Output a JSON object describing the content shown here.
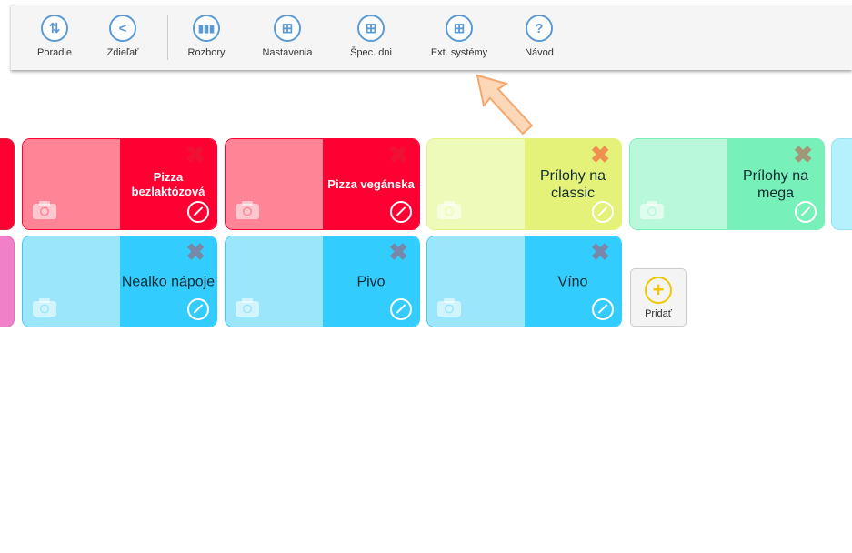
{
  "toolbar": {
    "items": [
      {
        "label": "Poradie",
        "icon": "sort-arrows-icon"
      },
      {
        "label": "Zdieľať",
        "icon": "share-icon"
      },
      {
        "label": "Rozbory",
        "icon": "bar-chart-icon"
      },
      {
        "label": "Nastavenia",
        "icon": "blocks-icon"
      },
      {
        "label": "Špec. dni",
        "icon": "blocks-icon"
      },
      {
        "label": "Ext. systémy",
        "icon": "blocks-icon"
      },
      {
        "label": "Návod",
        "icon": "help-icon"
      }
    ]
  },
  "categories": [
    {
      "name": "Pizza bezlaktózová",
      "light": "#ff8596",
      "dark": "#ff0033",
      "x_color": "#ee1133",
      "white": true
    },
    {
      "name": "Pizza vegánska",
      "light": "#ff8596",
      "dark": "#ff0033",
      "x_color": "#ee1133",
      "white": true
    },
    {
      "name": "Prílohy na classic",
      "light": "#eefab9",
      "dark": "#e5f27a",
      "x_color": "#f09050",
      "white": false
    },
    {
      "name": "Prílohy na mega",
      "light": "#b9f8da",
      "dark": "#78f0b9",
      "x_color": "#a09878",
      "white": false
    },
    {
      "name": "Nealko nápoje",
      "light": "#9ce6fc",
      "dark": "#33ccff",
      "x_color": "#7888a8",
      "white": false
    },
    {
      "name": "Pivo",
      "light": "#9ce6fc",
      "dark": "#33ccff",
      "x_color": "#7888a8",
      "white": false
    },
    {
      "name": "Víno",
      "light": "#9ce6fc",
      "dark": "#33ccff",
      "x_color": "#7888a8",
      "white": false
    }
  ],
  "add_button": {
    "label": "Pridať"
  },
  "pointer_color": "#f8b98a"
}
